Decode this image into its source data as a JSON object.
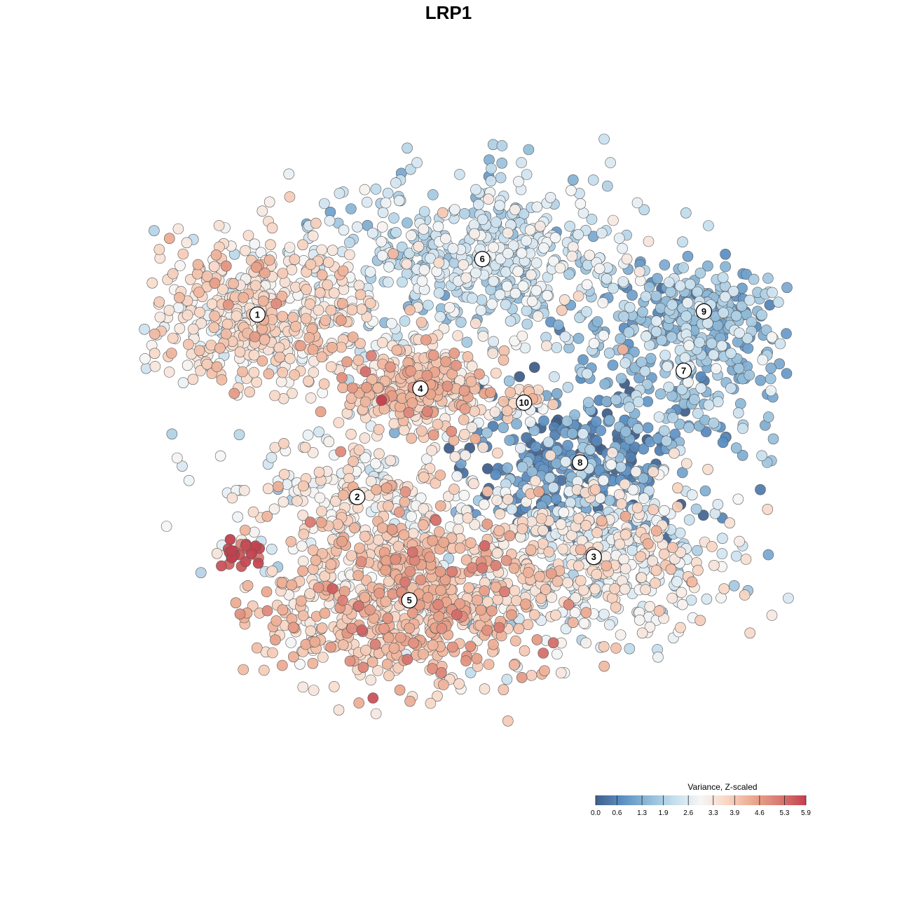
{
  "chart_data": {
    "type": "scatter",
    "title": "LRP1",
    "xlabel": "",
    "ylabel": "",
    "legend": {
      "title": "Variance, Z-scaled",
      "placement": "bottom-right",
      "range": [
        0.0,
        5.9
      ],
      "ticks": [
        "0.0",
        "0.6",
        "1.3",
        "1.9",
        "2.6",
        "3.3",
        "3.9",
        "4.6",
        "5.3",
        "5.9"
      ],
      "colors": [
        "#3f5f8a",
        "#5b8fc4",
        "#8fbad8",
        "#c6dfee",
        "#f6f6f6",
        "#f8d6c4",
        "#eba88e",
        "#d87a72",
        "#c3404e"
      ]
    },
    "grid": false,
    "axes_visible": false,
    "clusters": [
      {
        "label": "1",
        "x": 0.18,
        "y": 0.71,
        "mean_value": 3.4,
        "spread": 0.09,
        "n": 520
      },
      {
        "label": "2",
        "x": 0.333,
        "y": 0.424,
        "mean_value": 3.1,
        "spread": 0.09,
        "n": 260
      },
      {
        "label": "3",
        "x": 0.696,
        "y": 0.33,
        "mean_value": 2.9,
        "spread": 0.1,
        "n": 520
      },
      {
        "label": "4",
        "x": 0.43,
        "y": 0.594,
        "mean_value": 3.8,
        "spread": 0.05,
        "n": 300
      },
      {
        "label": "5",
        "x": 0.413,
        "y": 0.262,
        "mean_value": 3.9,
        "spread": 0.1,
        "n": 720
      },
      {
        "label": "6",
        "x": 0.525,
        "y": 0.797,
        "mean_value": 2.3,
        "spread": 0.11,
        "n": 520
      },
      {
        "label": "7",
        "x": 0.834,
        "y": 0.622,
        "mean_value": 1.6,
        "spread": 0.09,
        "n": 240
      },
      {
        "label": "8",
        "x": 0.675,
        "y": 0.478,
        "mean_value": 0.7,
        "spread": 0.08,
        "n": 330
      },
      {
        "label": "9",
        "x": 0.865,
        "y": 0.715,
        "mean_value": 1.4,
        "spread": 0.06,
        "n": 190
      },
      {
        "label": "10",
        "x": 0.589,
        "y": 0.572,
        "mean_value": 3.2,
        "spread": 0.02,
        "n": 30
      }
    ],
    "high_outlier_group": {
      "x": 0.152,
      "y": 0.336,
      "mean_value": 5.7,
      "n": 22
    }
  }
}
